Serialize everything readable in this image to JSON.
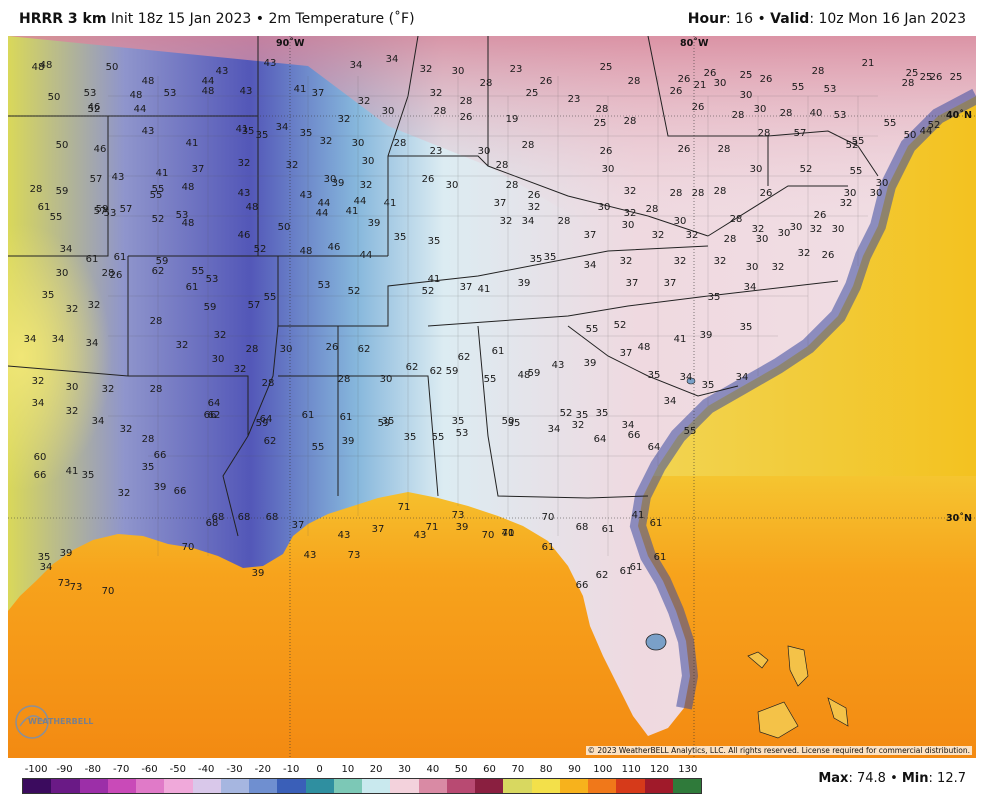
{
  "header": {
    "model": "HRRR 3 km",
    "init": "Init 18z 15 Jan 2023",
    "separator": "•",
    "product": "2m Temperature (˚F)",
    "hour_label": "Hour",
    "hour_value": ": 16",
    "valid_label": "Valid",
    "valid_value": ": 10z Mon 16 Jan 2023"
  },
  "map": {
    "lon_labels": [
      "90˚W",
      "80˚W"
    ],
    "lat_labels": [
      "40˚N",
      "30˚N"
    ],
    "copyright": "© 2023 WeatherBELL Analytics, LLC. All rights reserved. License required for commercial distribution.",
    "logo_text": "WEATHERBELL",
    "colors": {
      "gulf": "#f6a81a",
      "atlantic_east": "#f5c21e",
      "coast_cold": "#3c4aa0",
      "northeast": "#f1d5dc",
      "southeast": "#d6eef4",
      "plains_cold": "#5b5fbe",
      "texas": "#e8e27a"
    },
    "temps": [
      {
        "t": "48"
      },
      {
        "t": "48"
      },
      {
        "t": "50"
      },
      {
        "t": "48"
      },
      {
        "t": "44"
      },
      {
        "t": "43"
      },
      {
        "t": "43"
      },
      {
        "t": "34"
      },
      {
        "t": "34"
      },
      {
        "t": "32"
      },
      {
        "t": "30"
      },
      {
        "t": "28"
      },
      {
        "t": "23"
      },
      {
        "t": "26"
      },
      {
        "t": "25"
      },
      {
        "t": "28"
      },
      {
        "t": "26"
      },
      {
        "t": "26"
      },
      {
        "t": "28"
      },
      {
        "t": "25"
      },
      {
        "t": "26"
      },
      {
        "t": "28"
      },
      {
        "t": "25"
      },
      {
        "t": "21"
      },
      {
        "t": "25"
      },
      {
        "t": "26"
      },
      {
        "t": "25"
      },
      {
        "t": "50"
      },
      {
        "t": "53"
      },
      {
        "t": "48"
      },
      {
        "t": "53"
      },
      {
        "t": "48"
      },
      {
        "t": "43"
      },
      {
        "t": "41"
      },
      {
        "t": "37"
      },
      {
        "t": "32"
      },
      {
        "t": "32"
      },
      {
        "t": "28"
      },
      {
        "t": "25"
      },
      {
        "t": "23"
      },
      {
        "t": "28"
      },
      {
        "t": "26"
      },
      {
        "t": "21"
      },
      {
        "t": "30"
      },
      {
        "t": "30"
      },
      {
        "t": "55"
      },
      {
        "t": "53"
      },
      {
        "t": "52"
      },
      {
        "t": "46"
      },
      {
        "t": "44"
      },
      {
        "t": "41"
      },
      {
        "t": "35"
      },
      {
        "t": "34"
      },
      {
        "t": "32"
      },
      {
        "t": "30"
      },
      {
        "t": "28"
      },
      {
        "t": "26"
      },
      {
        "t": "19"
      },
      {
        "t": "25"
      },
      {
        "t": "28"
      },
      {
        "t": "26"
      },
      {
        "t": "28"
      },
      {
        "t": "30"
      },
      {
        "t": "28"
      },
      {
        "t": "40"
      },
      {
        "t": "53"
      },
      {
        "t": "55"
      },
      {
        "t": "52"
      },
      {
        "t": "50"
      },
      {
        "t": "46"
      },
      {
        "t": "43"
      },
      {
        "t": "41"
      },
      {
        "t": "35"
      },
      {
        "t": "35"
      },
      {
        "t": "32"
      },
      {
        "t": "30"
      },
      {
        "t": "28"
      },
      {
        "t": "23"
      },
      {
        "t": "30"
      },
      {
        "t": "28"
      },
      {
        "t": "26"
      },
      {
        "t": "26"
      },
      {
        "t": "28"
      },
      {
        "t": "28"
      },
      {
        "t": "57"
      },
      {
        "t": "52"
      },
      {
        "t": "55"
      },
      {
        "t": "50"
      },
      {
        "t": "44"
      },
      {
        "t": "43"
      },
      {
        "t": "41"
      },
      {
        "t": "37"
      },
      {
        "t": "32"
      },
      {
        "t": "32"
      },
      {
        "t": "30"
      },
      {
        "t": "30"
      },
      {
        "t": "26"
      },
      {
        "t": "30"
      },
      {
        "t": "28"
      },
      {
        "t": "26"
      },
      {
        "t": "30"
      },
      {
        "t": "28"
      },
      {
        "t": "30"
      },
      {
        "t": "52"
      },
      {
        "t": "55"
      },
      {
        "t": "57"
      },
      {
        "t": "55"
      },
      {
        "t": "48"
      },
      {
        "t": "43"
      },
      {
        "t": "43"
      },
      {
        "t": "39"
      },
      {
        "t": "32"
      },
      {
        "t": "28"
      },
      {
        "t": "32"
      },
      {
        "t": "28"
      },
      {
        "t": "28"
      },
      {
        "t": "26"
      },
      {
        "t": "30"
      },
      {
        "t": "30"
      },
      {
        "t": "30"
      },
      {
        "t": "28"
      },
      {
        "t": "59"
      },
      {
        "t": "57"
      },
      {
        "t": "55"
      },
      {
        "t": "53"
      },
      {
        "t": "48"
      },
      {
        "t": "44"
      },
      {
        "t": "44"
      },
      {
        "t": "41"
      },
      {
        "t": "37"
      },
      {
        "t": "32"
      },
      {
        "t": "30"
      },
      {
        "t": "32"
      },
      {
        "t": "28"
      },
      {
        "t": "30"
      },
      {
        "t": "28"
      },
      {
        "t": "32"
      },
      {
        "t": "30"
      },
      {
        "t": "32"
      },
      {
        "t": "30"
      },
      {
        "t": "32"
      },
      {
        "t": "61"
      },
      {
        "t": "59"
      },
      {
        "t": "57"
      },
      {
        "t": "55"
      },
      {
        "t": "53"
      },
      {
        "t": "52"
      },
      {
        "t": "48"
      },
      {
        "t": "46"
      },
      {
        "t": "50"
      },
      {
        "t": "44"
      },
      {
        "t": "41"
      },
      {
        "t": "39"
      },
      {
        "t": "35"
      },
      {
        "t": "35"
      },
      {
        "t": "32"
      },
      {
        "t": "34"
      },
      {
        "t": "28"
      },
      {
        "t": "37"
      },
      {
        "t": "30"
      },
      {
        "t": "32"
      },
      {
        "t": "32"
      },
      {
        "t": "28"
      },
      {
        "t": "30"
      },
      {
        "t": "30"
      },
      {
        "t": "26"
      },
      {
        "t": "34"
      },
      {
        "t": "61"
      },
      {
        "t": "61"
      },
      {
        "t": "59"
      },
      {
        "t": "55"
      },
      {
        "t": "53"
      },
      {
        "t": "52"
      },
      {
        "t": "48"
      },
      {
        "t": "46"
      },
      {
        "t": "44"
      },
      {
        "t": "41"
      },
      {
        "t": "37"
      },
      {
        "t": "35"
      },
      {
        "t": "35"
      },
      {
        "t": "34"
      },
      {
        "t": "32"
      },
      {
        "t": "32"
      },
      {
        "t": "32"
      },
      {
        "t": "30"
      },
      {
        "t": "32"
      },
      {
        "t": "26"
      },
      {
        "t": "30"
      },
      {
        "t": "28"
      },
      {
        "t": "26"
      },
      {
        "t": "62"
      },
      {
        "t": "61"
      },
      {
        "t": "59"
      },
      {
        "t": "57"
      },
      {
        "t": "55"
      },
      {
        "t": "53"
      },
      {
        "t": "52"
      },
      {
        "t": "52"
      },
      {
        "t": "41"
      },
      {
        "t": "39"
      },
      {
        "t": "37"
      },
      {
        "t": "37"
      },
      {
        "t": "35"
      },
      {
        "t": "34"
      },
      {
        "t": "32"
      },
      {
        "t": "35"
      },
      {
        "t": "32"
      },
      {
        "t": "32"
      },
      {
        "t": "28"
      },
      {
        "t": "32"
      },
      {
        "t": "32"
      },
      {
        "t": "28"
      },
      {
        "t": "28"
      },
      {
        "t": "30"
      },
      {
        "t": "62"
      },
      {
        "t": "62"
      },
      {
        "t": "61"
      },
      {
        "t": "59"
      },
      {
        "t": "55"
      },
      {
        "t": "52"
      },
      {
        "t": "48"
      },
      {
        "t": "41"
      },
      {
        "t": "39"
      },
      {
        "t": "35"
      },
      {
        "t": "34"
      },
      {
        "t": "34"
      },
      {
        "t": "34"
      },
      {
        "t": "32"
      },
      {
        "t": "30"
      },
      {
        "t": "28"
      },
      {
        "t": "30"
      },
      {
        "t": "26"
      },
      {
        "t": "62"
      },
      {
        "t": "62"
      },
      {
        "t": "59"
      },
      {
        "t": "55"
      },
      {
        "t": "48"
      },
      {
        "t": "43"
      },
      {
        "t": "39"
      },
      {
        "t": "37"
      },
      {
        "t": "35"
      },
      {
        "t": "34"
      },
      {
        "t": "35"
      },
      {
        "t": "34"
      },
      {
        "t": "32"
      },
      {
        "t": "30"
      },
      {
        "t": "32"
      },
      {
        "t": "28"
      },
      {
        "t": "64"
      },
      {
        "t": "64"
      },
      {
        "t": "61"
      },
      {
        "t": "61"
      },
      {
        "t": "59"
      },
      {
        "t": "55"
      },
      {
        "t": "53"
      },
      {
        "t": "50"
      },
      {
        "t": "52"
      },
      {
        "t": "35"
      },
      {
        "t": "35"
      },
      {
        "t": "34"
      },
      {
        "t": "34"
      },
      {
        "t": "34"
      },
      {
        "t": "32"
      },
      {
        "t": "34"
      },
      {
        "t": "32"
      },
      {
        "t": "28"
      },
      {
        "t": "66"
      },
      {
        "t": "66"
      },
      {
        "t": "62"
      },
      {
        "t": "59"
      },
      {
        "t": "62"
      },
      {
        "t": "55"
      },
      {
        "t": "39"
      },
      {
        "t": "35"
      },
      {
        "t": "35"
      },
      {
        "t": "35"
      },
      {
        "t": "35"
      },
      {
        "t": "34"
      },
      {
        "t": "32"
      },
      {
        "t": "64"
      },
      {
        "t": "66"
      },
      {
        "t": "64"
      },
      {
        "t": "55"
      },
      {
        "t": "60"
      },
      {
        "t": "66"
      },
      {
        "t": "41"
      },
      {
        "t": "35"
      },
      {
        "t": "32"
      },
      {
        "t": "35"
      },
      {
        "t": "39"
      },
      {
        "t": "66"
      },
      {
        "t": "68"
      },
      {
        "t": "68"
      },
      {
        "t": "68"
      },
      {
        "t": "68"
      },
      {
        "t": "37"
      },
      {
        "t": "43"
      },
      {
        "t": "37"
      },
      {
        "t": "71"
      },
      {
        "t": "71"
      },
      {
        "t": "73"
      },
      {
        "t": "70"
      },
      {
        "t": "70"
      },
      {
        "t": "70"
      },
      {
        "t": "68"
      },
      {
        "t": "35"
      },
      {
        "t": "34"
      },
      {
        "t": "39"
      },
      {
        "t": "73"
      },
      {
        "t": "73"
      },
      {
        "t": "70"
      },
      {
        "t": "70"
      },
      {
        "t": "39"
      },
      {
        "t": "43"
      },
      {
        "t": "73"
      },
      {
        "t": "43"
      },
      {
        "t": "39"
      },
      {
        "t": "41"
      },
      {
        "t": "61"
      },
      {
        "t": "66"
      },
      {
        "t": "61"
      },
      {
        "t": "61"
      },
      {
        "t": "62"
      },
      {
        "t": "61"
      },
      {
        "t": "41"
      },
      {
        "t": "61"
      },
      {
        "t": "61"
      }
    ]
  },
  "legend": {
    "ticks": [
      "-100",
      "-90",
      "-80",
      "-70",
      "-60",
      "-50",
      "-40",
      "-30",
      "-20",
      "-10",
      "0",
      "10",
      "20",
      "30",
      "40",
      "50",
      "60",
      "70",
      "80",
      "90",
      "100",
      "110",
      "120",
      "130"
    ],
    "colors": [
      "#3b0b5e",
      "#6a1a86",
      "#9c2fa8",
      "#c94ab8",
      "#e07ac8",
      "#f0a9da",
      "#d9c8ea",
      "#a6b6e0",
      "#6f8fd0",
      "#3a5fb8",
      "#2f8fa0",
      "#7cc8b6",
      "#c9e9ee",
      "#f3d2dc",
      "#d98aa4",
      "#b84a72",
      "#8a1f40",
      "#d8d860",
      "#f3e04a",
      "#f7b21c",
      "#f0781a",
      "#d63a1a",
      "#a01a2a",
      "#2f7a3a"
    ],
    "max_label": "Max",
    "max_value": ": 74.8",
    "min_label": "Min",
    "min_value": ": 12.7",
    "bullet": "•"
  }
}
